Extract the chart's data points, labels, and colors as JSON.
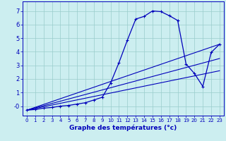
{
  "title": "",
  "xlabel": "Graphe des températures (°c)",
  "ylabel": "",
  "background_color": "#cceef0",
  "line_color": "#0000bb",
  "grid_color": "#99cccc",
  "x_ticks": [
    0,
    1,
    2,
    3,
    4,
    5,
    6,
    7,
    8,
    9,
    10,
    11,
    12,
    13,
    14,
    15,
    16,
    17,
    18,
    19,
    20,
    21,
    22,
    23
  ],
  "y_ticks": [
    0,
    1,
    2,
    3,
    4,
    5,
    6,
    7
  ],
  "y_tick_labels": [
    "-0",
    "1",
    "2",
    "3",
    "4",
    "5",
    "6",
    "7"
  ],
  "xlim": [
    -0.5,
    23.5
  ],
  "ylim": [
    -0.7,
    7.7
  ],
  "series1": {
    "x": [
      0,
      1,
      2,
      3,
      4,
      5,
      6,
      7,
      8,
      9,
      10,
      11,
      12,
      13,
      14,
      15,
      16,
      17,
      18,
      19,
      20,
      21,
      22,
      23
    ],
    "y": [
      -0.3,
      -0.25,
      -0.15,
      -0.1,
      0.0,
      0.05,
      0.15,
      0.25,
      0.45,
      0.65,
      1.7,
      3.2,
      4.85,
      6.4,
      6.6,
      7.0,
      6.95,
      6.65,
      6.3,
      3.1,
      2.4,
      1.45,
      3.95,
      4.55
    ]
  },
  "series2": {
    "x": [
      0,
      23
    ],
    "y": [
      -0.3,
      3.5
    ]
  },
  "series3": {
    "x": [
      0,
      23
    ],
    "y": [
      -0.3,
      2.6
    ]
  },
  "series4": {
    "x": [
      0,
      23
    ],
    "y": [
      -0.3,
      4.55
    ]
  }
}
